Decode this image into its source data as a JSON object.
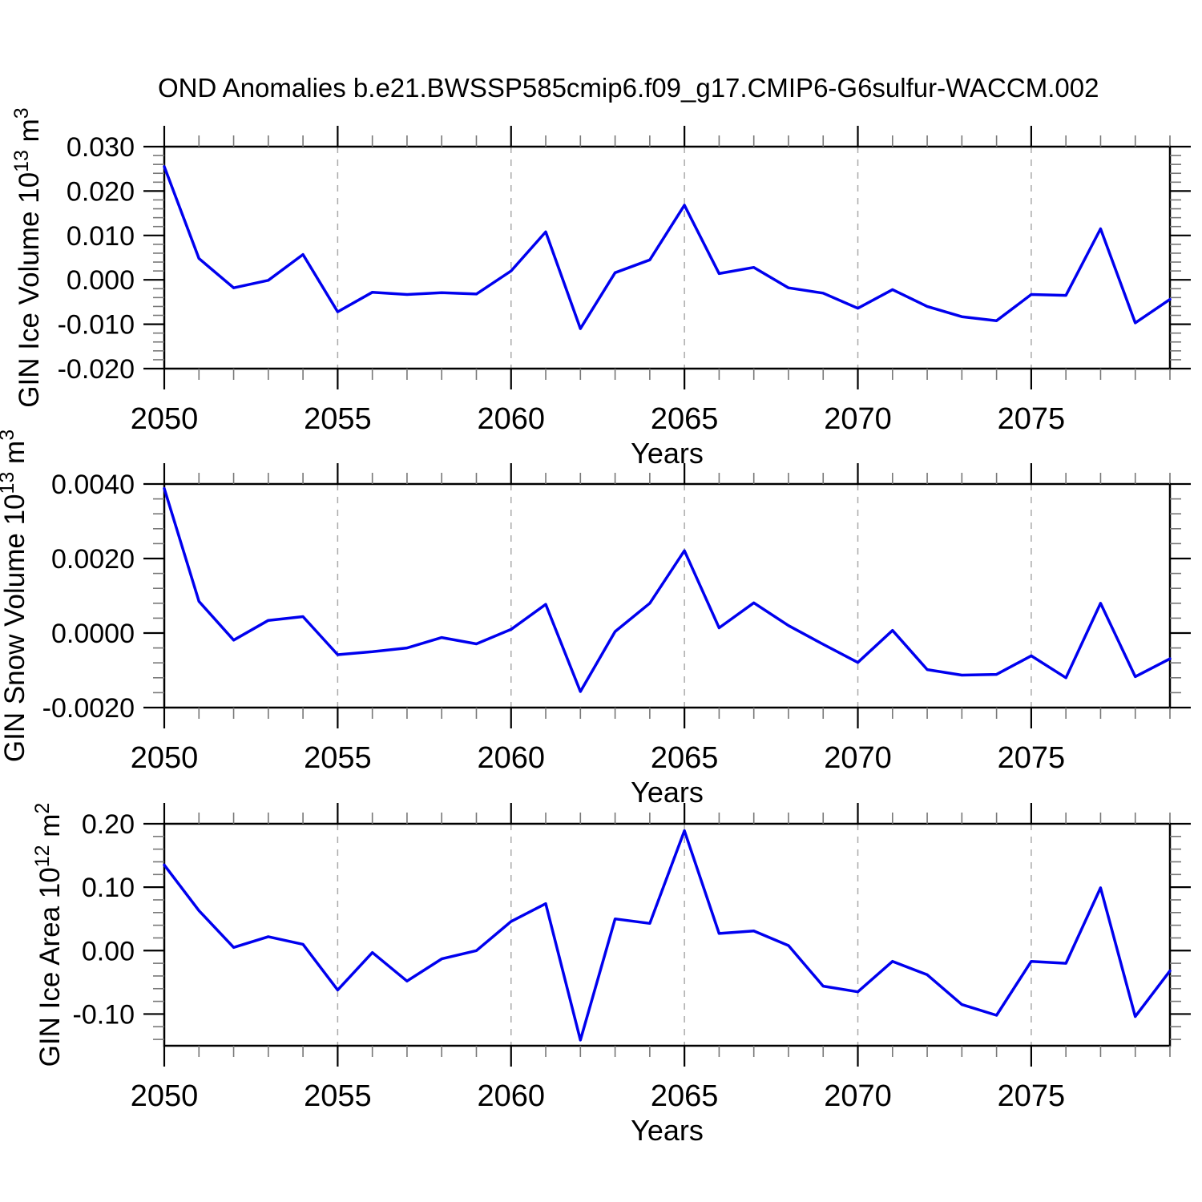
{
  "title": "OND Anomalies b.e21.BWSSP585cmip6.f09_g17.CMIP6-G6sulfur-WACCM.002",
  "colors": {
    "line": "#0000ee",
    "axis": "#000000",
    "minor_tick": "#777777",
    "grid": "#aaaaaa",
    "background": "#ffffff",
    "text": "#000000"
  },
  "chart_data": [
    {
      "type": "line",
      "name": "gin-ice-volume",
      "ylabel_parts": [
        {
          "t": "GIN Ice Volume 10"
        },
        {
          "sup": "13"
        },
        {
          "t": " m"
        },
        {
          "sup": "3"
        }
      ],
      "xlabel": "Years",
      "ylim": [
        -0.02,
        0.03
      ],
      "yticks": [
        {
          "v": 0.03,
          "label": "0.030"
        },
        {
          "v": 0.02,
          "label": "0.020"
        },
        {
          "v": 0.01,
          "label": "0.010"
        },
        {
          "v": 0.0,
          "label": "0.000"
        },
        {
          "v": -0.01,
          "label": "-0.010"
        },
        {
          "v": -0.02,
          "label": "-0.020"
        }
      ],
      "yminor_step": 0.002,
      "xlim": [
        2050,
        2079
      ],
      "xticks_labeled": [
        2050,
        2055,
        2060,
        2065,
        2070,
        2075
      ],
      "grid_years": [
        2055,
        2060,
        2065,
        2070,
        2075
      ],
      "x": [
        2050,
        2051,
        2052,
        2053,
        2054,
        2055,
        2056,
        2057,
        2058,
        2059,
        2060,
        2061,
        2062,
        2063,
        2064,
        2065,
        2066,
        2067,
        2068,
        2069,
        2070,
        2071,
        2072,
        2073,
        2074,
        2075,
        2076,
        2077,
        2078,
        2079
      ],
      "values": [
        0.0255,
        0.0048,
        -0.0018,
        -0.0001,
        0.0057,
        -0.0072,
        -0.0028,
        -0.0033,
        -0.0029,
        -0.0032,
        0.002,
        0.0108,
        -0.011,
        0.0016,
        0.0045,
        0.0168,
        0.0014,
        0.0028,
        -0.0018,
        -0.003,
        -0.0064,
        -0.0022,
        -0.006,
        -0.0083,
        -0.0092,
        -0.0033,
        -0.0035,
        0.0115,
        -0.0097,
        -0.0044
      ]
    },
    {
      "type": "line",
      "name": "gin-snow-volume",
      "ylabel_parts": [
        {
          "t": "GIN Snow Volume 10"
        },
        {
          "sup": "13"
        },
        {
          "t": " m"
        },
        {
          "sup": "3"
        }
      ],
      "xlabel": "Years",
      "ylim": [
        -0.002,
        0.004
      ],
      "yticks": [
        {
          "v": 0.004,
          "label": "0.0040"
        },
        {
          "v": 0.002,
          "label": "0.0020"
        },
        {
          "v": 0.0,
          "label": "0.0000"
        },
        {
          "v": -0.002,
          "label": "-0.0020"
        }
      ],
      "yminor_step": 0.0004,
      "xlim": [
        2050,
        2079
      ],
      "xticks_labeled": [
        2050,
        2055,
        2060,
        2065,
        2070,
        2075
      ],
      "grid_years": [
        2055,
        2060,
        2065,
        2070,
        2075
      ],
      "x": [
        2050,
        2051,
        2052,
        2053,
        2054,
        2055,
        2056,
        2057,
        2058,
        2059,
        2060,
        2061,
        2062,
        2063,
        2064,
        2065,
        2066,
        2067,
        2068,
        2069,
        2070,
        2071,
        2072,
        2073,
        2074,
        2075,
        2076,
        2077,
        2078,
        2079
      ],
      "values": [
        0.00388,
        0.00085,
        -0.00019,
        0.00034,
        0.00044,
        -0.00058,
        -0.0005,
        -0.0004,
        -0.00012,
        -0.00029,
        0.0001,
        0.00077,
        -0.00157,
        4e-05,
        0.0008,
        0.00221,
        0.00014,
        0.00081,
        0.0002,
        -0.0003,
        -0.00079,
        7e-05,
        -0.00098,
        -0.00113,
        -0.00111,
        -0.00061,
        -0.0012,
        0.0008,
        -0.00117,
        -0.00069
      ]
    },
    {
      "type": "line",
      "name": "gin-ice-area",
      "ylabel_parts": [
        {
          "t": "GIN Ice Area 10"
        },
        {
          "sup": "12"
        },
        {
          "t": " m"
        },
        {
          "sup": "2"
        }
      ],
      "xlabel": "Years",
      "ylim": [
        -0.15,
        0.2
      ],
      "yticks": [
        {
          "v": 0.2,
          "label": "0.20"
        },
        {
          "v": 0.1,
          "label": "0.10"
        },
        {
          "v": 0.0,
          "label": "0.00"
        },
        {
          "v": -0.1,
          "label": "-0.10"
        }
      ],
      "yminor_step": 0.02,
      "xlim": [
        2050,
        2079
      ],
      "xticks_labeled": [
        2050,
        2055,
        2060,
        2065,
        2070,
        2075
      ],
      "grid_years": [
        2055,
        2060,
        2065,
        2070,
        2075
      ],
      "x": [
        2050,
        2051,
        2052,
        2053,
        2054,
        2055,
        2056,
        2057,
        2058,
        2059,
        2060,
        2061,
        2062,
        2063,
        2064,
        2065,
        2066,
        2067,
        2068,
        2069,
        2070,
        2071,
        2072,
        2073,
        2074,
        2075,
        2076,
        2077,
        2078,
        2079
      ],
      "values": [
        0.135,
        0.063,
        0.005,
        0.022,
        0.01,
        -0.062,
        -0.003,
        -0.048,
        -0.013,
        0.0,
        0.046,
        0.074,
        -0.141,
        0.05,
        0.043,
        0.189,
        0.027,
        0.031,
        0.008,
        -0.056,
        -0.065,
        -0.017,
        -0.038,
        -0.085,
        -0.102,
        -0.017,
        -0.02,
        0.099,
        -0.104,
        -0.032
      ]
    }
  ]
}
